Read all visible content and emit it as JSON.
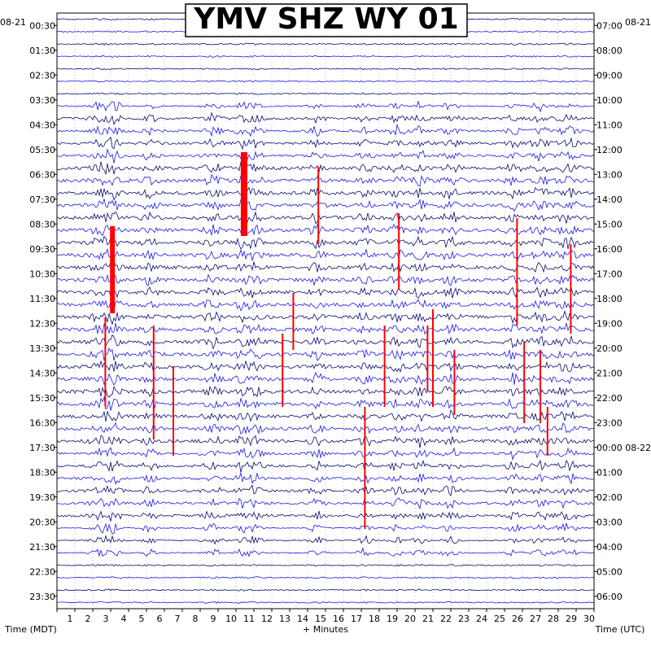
{
  "chart_data": {
    "type": "line",
    "title": "YMV SHZ WY 01",
    "xlabel": "+ Minutes",
    "ylabel_left": "Time (MDT)",
    "ylabel_right": "Time (UTC)",
    "date_left": "08-21",
    "date_right_mid": "08-22",
    "x_ticks": [
      "1",
      "2",
      "3",
      "4",
      "5",
      "6",
      "7",
      "8",
      "9",
      "10",
      "11",
      "12",
      "13",
      "14",
      "15",
      "16",
      "17",
      "18",
      "19",
      "20",
      "21",
      "22",
      "23",
      "24",
      "25",
      "26",
      "27",
      "28",
      "29",
      "30"
    ],
    "xlim": [
      0,
      30
    ],
    "left_ticks": [
      "00:30",
      "01:30",
      "02:30",
      "03:30",
      "04:30",
      "05:30",
      "06:30",
      "07:30",
      "08:30",
      "09:30",
      "10:30",
      "11:30",
      "12:30",
      "13:30",
      "14:30",
      "15:30",
      "16:30",
      "17:30",
      "18:30",
      "19:30",
      "20:30",
      "21:30",
      "22:30",
      "23:30"
    ],
    "right_ticks": [
      "07:00",
      "08:00",
      "09:00",
      "10:00",
      "11:00",
      "12:00",
      "13:00",
      "14:00",
      "15:00",
      "16:00",
      "17:00",
      "18:00",
      "19:00",
      "20:00",
      "21:00",
      "22:00",
      "23:00",
      "00:00 08-22",
      "01:00",
      "02:00",
      "03:00",
      "04:00",
      "05:00",
      "06:00"
    ],
    "trace_colors": [
      "#0a0a6e",
      "#1a1ae6"
    ],
    "clip_color": "#ff0000",
    "trace_count": 48,
    "grid": true
  }
}
